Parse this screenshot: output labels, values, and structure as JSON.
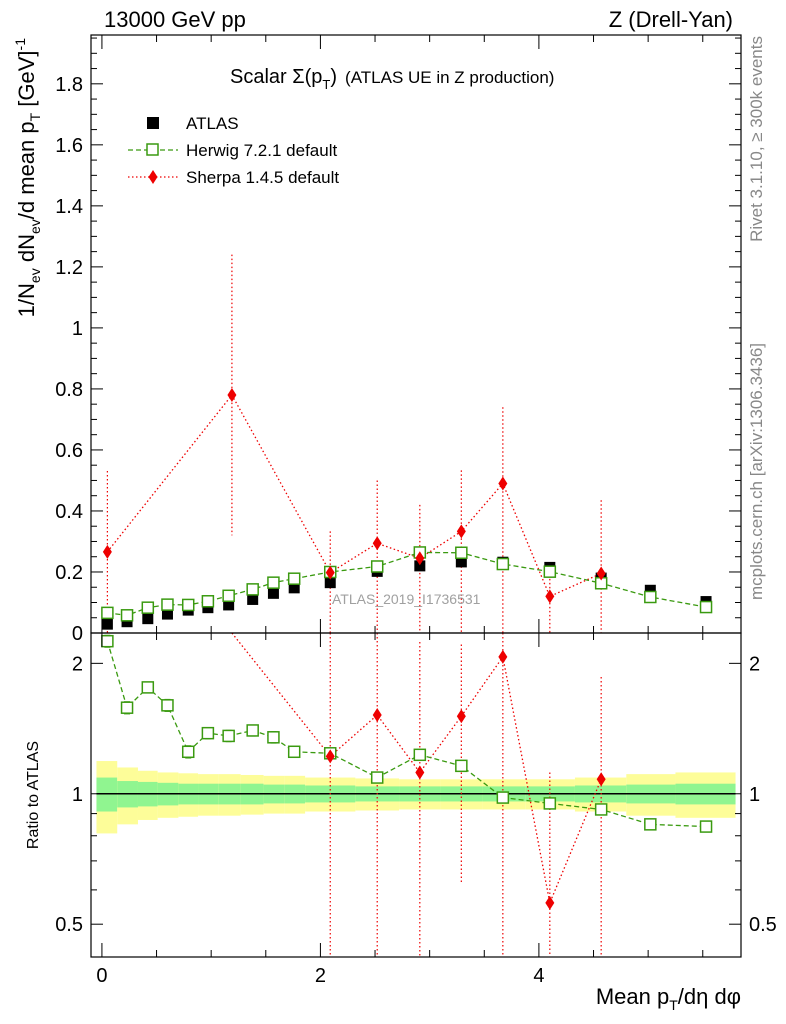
{
  "header": {
    "left": "13000 GeV pp",
    "right": "Z (Drell-Yan)"
  },
  "side_labels": {
    "top": "Rivet 3.1.10, ≥ 300k events",
    "bottom": "mcplots.cern.ch [arXiv:1306.3436]"
  },
  "watermark": "ATLAS_2019_I1736531",
  "chart_data": {
    "type": "scatter",
    "title": "Scalar Σ(pT) (ATLAS UE in Z production)",
    "title_parts": {
      "main": "Scalar Σ(p",
      "sub": "T",
      "close": ")",
      "suffix": "(ATLAS UE in Z production)"
    },
    "xlabel": "Mean pT/dη dφ",
    "xlabel_parts": {
      "a": "Mean p",
      "sub": "T",
      "b": "/dη dφ"
    },
    "ylabel": "1/Nev dNev/d mean pT [GeV]^-1",
    "ylabel_parts": {
      "a": "1/N",
      "s1": "ev",
      "b": " dN",
      "s2": "ev",
      "c": "/d mean p",
      "s3": "T",
      "d": " [GeV]",
      "sup": "-1"
    },
    "ratio_ylabel": "Ratio to ATLAS",
    "xlim": [
      -0.1,
      5.85
    ],
    "ylim": [
      0,
      1.96
    ],
    "ratio_ylim": [
      0.42,
      2.35
    ],
    "x_ticks": [
      0,
      2,
      4
    ],
    "x_tick_labels": [
      "0",
      "2",
      "4"
    ],
    "y_ticks": [
      0,
      0.2,
      0.4,
      0.6,
      0.8,
      1,
      1.2,
      1.4,
      1.6,
      1.8
    ],
    "y_tick_labels": [
      "0",
      "0.2",
      "0.4",
      "0.6",
      "0.8",
      "1",
      "1.2",
      "1.4",
      "1.6",
      "1.8"
    ],
    "ratio_ticks": [
      0.5,
      1,
      2
    ],
    "ratio_tick_labels": [
      "0.5",
      "1",
      "2"
    ],
    "legend": [
      "ATLAS",
      "Herwig 7.2.1 default",
      "Sherpa 1.4.5 default"
    ],
    "colors": {
      "atlas": "#000000",
      "herwig": "#3a9a10",
      "sherpa": "#ee0000",
      "band_inner": "#90f590",
      "band_outer": "#fdfd99"
    },
    "series": [
      {
        "name": "ATLAS",
        "x": [
          0.05,
          0.23,
          0.42,
          0.6,
          0.79,
          0.97,
          1.16,
          1.38,
          1.57,
          1.76,
          2.09,
          2.52,
          2.91,
          3.29,
          3.67,
          4.1,
          4.57,
          5.02,
          5.53
        ],
        "y": [
          0.029,
          0.037,
          0.047,
          0.062,
          0.075,
          0.083,
          0.092,
          0.11,
          0.13,
          0.148,
          0.165,
          0.202,
          0.22,
          0.233,
          0.232,
          0.215,
          0.18,
          0.14,
          0.103
        ]
      },
      {
        "name": "Herwig 7.2.1 default",
        "x": [
          0.05,
          0.23,
          0.42,
          0.6,
          0.79,
          0.97,
          1.16,
          1.38,
          1.57,
          1.76,
          2.09,
          2.52,
          2.91,
          3.29,
          3.67,
          4.1,
          4.57,
          5.02,
          5.53
        ],
        "y": [
          0.066,
          0.058,
          0.083,
          0.093,
          0.092,
          0.104,
          0.122,
          0.143,
          0.165,
          0.178,
          0.2,
          0.218,
          0.264,
          0.263,
          0.226,
          0.201,
          0.163,
          0.118,
          0.085
        ]
      },
      {
        "name": "Sherpa 1.4.5 default",
        "x": [
          0.05,
          1.19,
          2.09,
          2.52,
          2.91,
          3.29,
          3.67,
          4.1,
          4.57
        ],
        "y": [
          0.266,
          0.78,
          0.198,
          0.294,
          0.245,
          0.333,
          0.49,
          0.12,
          0.195
        ],
        "err_low": [
          0.266,
          0.46,
          0.198,
          0.294,
          0.245,
          0.333,
          0.49,
          0.12,
          0.195
        ],
        "err_high": [
          0.265,
          0.46,
          0.135,
          0.206,
          0.175,
          0.2,
          0.25,
          0.11,
          0.24
        ]
      }
    ],
    "ratio_series": [
      {
        "name": "Herwig 7.2.1 default",
        "x": [
          0.05,
          0.23,
          0.42,
          0.6,
          0.79,
          0.97,
          1.16,
          1.38,
          1.57,
          1.76,
          2.09,
          2.52,
          2.91,
          3.29,
          3.67,
          4.1,
          4.57,
          5.02,
          5.53
        ],
        "y": [
          2.25,
          1.58,
          1.76,
          1.6,
          1.25,
          1.38,
          1.36,
          1.4,
          1.35,
          1.25,
          1.24,
          1.09,
          1.23,
          1.16,
          0.98,
          0.95,
          0.92,
          0.85,
          0.84
        ],
        "err": [
          0.07,
          0.05,
          0.05,
          0.05,
          0.04,
          0.04,
          0.04,
          0.04,
          0.04,
          0.03,
          0.02,
          0.02,
          0.02,
          0.02,
          0.02,
          0.02,
          0.02,
          0.02,
          0.02
        ]
      },
      {
        "name": "Sherpa 1.4.5 default",
        "x": [
          2.09,
          2.52,
          2.91,
          3.29,
          3.67,
          4.1,
          4.57
        ],
        "y": [
          1.22,
          1.52,
          1.12,
          1.51,
          2.07,
          0.56,
          1.08
        ],
        "low": [
          0.3,
          0.35,
          0.3,
          0.62,
          0.3,
          0.3,
          0.3
        ],
        "high": [
          2.5,
          2.5,
          2.24,
          2.21,
          2.5,
          1.12,
          1.86
        ]
      }
    ],
    "sherpa_ratio_offscale": {
      "x": 0.05,
      "y": 0.5,
      "x2": 1.19,
      "y2": 3.4
    },
    "band_edges": [
      -0.05,
      0.14,
      0.33,
      0.51,
      0.7,
      0.88,
      1.07,
      1.27,
      1.48,
      1.67,
      1.86,
      2.32,
      2.72,
      3.1,
      3.48,
      3.88,
      4.33,
      4.8,
      5.25,
      5.8
    ],
    "band_inner": [
      0.09,
      0.07,
      0.065,
      0.06,
      0.055,
      0.055,
      0.055,
      0.055,
      0.05,
      0.05,
      0.045,
      0.04,
      0.04,
      0.04,
      0.04,
      0.04,
      0.045,
      0.05,
      0.055
    ],
    "band_outer": [
      0.19,
      0.15,
      0.13,
      0.12,
      0.115,
      0.11,
      0.11,
      0.105,
      0.1,
      0.1,
      0.09,
      0.085,
      0.08,
      0.08,
      0.08,
      0.08,
      0.09,
      0.11,
      0.12
    ]
  }
}
